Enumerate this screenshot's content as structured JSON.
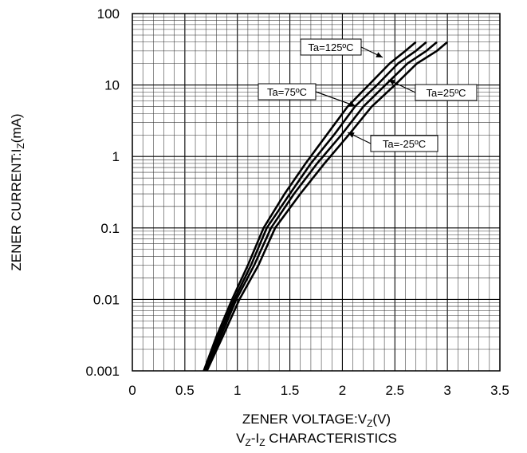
{
  "chart_data": {
    "type": "line",
    "title": "",
    "xlabel": "ZENER VOLTAGE:V",
    "xlabel_sub": "Z",
    "xlabel_unit": "(V)",
    "ylabel": "ZENER CURRENT:I",
    "ylabel_sub": "Z",
    "ylabel_unit": "(mA)",
    "caption_part1": "V",
    "caption_sub1": "Z",
    "caption_part2": "-I",
    "caption_sub2": "Z",
    "caption_part3": " CHARACTERISTICS",
    "xlim": [
      0,
      3.5
    ],
    "ylim": [
      0.001,
      100
    ],
    "yscale": "log",
    "grid": true,
    "x_ticks": [
      "0",
      "0.5",
      "1",
      "1.5",
      "2",
      "2.5",
      "3",
      "3.5"
    ],
    "y_ticks": [
      "0.001",
      "0.01",
      "0.1",
      "1",
      "10",
      "100"
    ],
    "series": [
      {
        "name": "Ta=125ºC",
        "x": [
          0.68,
          0.8,
          0.95,
          1.1,
          1.25,
          1.45,
          1.65,
          1.85,
          2.05,
          2.25,
          2.45,
          2.6,
          2.7
        ],
        "y": [
          0.001,
          0.003,
          0.01,
          0.03,
          0.1,
          0.3,
          0.8,
          2,
          5,
          10,
          20,
          30,
          40
        ]
      },
      {
        "name": "Ta=75ºC",
        "x": [
          0.69,
          0.82,
          0.97,
          1.13,
          1.28,
          1.5,
          1.7,
          1.92,
          2.12,
          2.33,
          2.53,
          2.7,
          2.8
        ],
        "y": [
          0.001,
          0.003,
          0.01,
          0.03,
          0.1,
          0.3,
          0.8,
          2,
          5,
          10,
          20,
          30,
          40
        ]
      },
      {
        "name": "Ta=25ºC",
        "x": [
          0.7,
          0.84,
          0.99,
          1.16,
          1.32,
          1.54,
          1.76,
          1.99,
          2.2,
          2.41,
          2.62,
          2.8,
          2.9
        ],
        "y": [
          0.001,
          0.003,
          0.01,
          0.03,
          0.1,
          0.3,
          0.8,
          2,
          5,
          10,
          20,
          30,
          40
        ]
      },
      {
        "name": "Ta=-25ºC",
        "x": [
          0.71,
          0.86,
          1.02,
          1.2,
          1.36,
          1.6,
          1.83,
          2.06,
          2.28,
          2.5,
          2.71,
          2.9,
          3.0
        ],
        "y": [
          0.001,
          0.003,
          0.01,
          0.03,
          0.1,
          0.3,
          0.8,
          2,
          5,
          10,
          20,
          30,
          40
        ]
      }
    ],
    "annotations": [
      {
        "text": "Ta=125ºC",
        "points_to": [
          2.45,
          20
        ]
      },
      {
        "text": "Ta=75ºC",
        "points_to": [
          2.12,
          5
        ]
      },
      {
        "text": "Ta=25ºC",
        "points_to": [
          2.45,
          10
        ]
      },
      {
        "text": "Ta=-25ºC",
        "points_to": [
          2.05,
          2
        ]
      }
    ]
  }
}
